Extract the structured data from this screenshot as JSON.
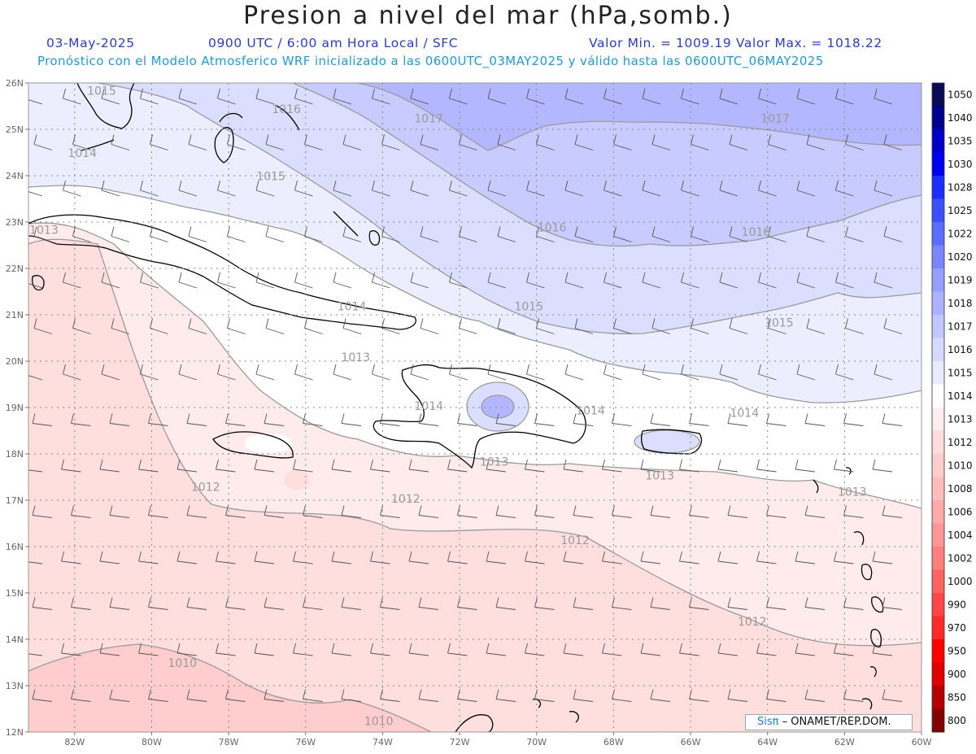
{
  "header": {
    "title": "Presion a nivel del mar (hPa,somb.)",
    "date": "03-May-2025",
    "time": "0900 UTC / 6:00 am Hora Local / SFC",
    "min_max": "Valor Min. = 1009.19  Valor Max. = 1018.22",
    "model_line": "Pronóstico con el Modelo Atmosferico WRF inicializado a las 0600UTC_03MAY2025 y válido hasta las  0600UTC_06MAY2025"
  },
  "credit": {
    "logo": "Sisπ",
    "text": " – ONAMET/REP.DOM."
  },
  "map": {
    "lon_labels": [
      "82W",
      "80W",
      "78W",
      "76W",
      "74W",
      "72W",
      "70W",
      "68W",
      "66W",
      "64W",
      "62W",
      "60W"
    ],
    "lat_labels": [
      "26N",
      "25N",
      "24N",
      "23N",
      "22N",
      "21N",
      "20N",
      "19N",
      "18N",
      "17N",
      "16N",
      "15N",
      "14N",
      "13N",
      "12N"
    ],
    "contour_labels": [
      {
        "text": "1015",
        "lon": -81.3,
        "lat": 25.75
      },
      {
        "text": "1016",
        "lon": -76.5,
        "lat": 25.35
      },
      {
        "text": "1017",
        "lon": -72.8,
        "lat": 25.15
      },
      {
        "text": "1017",
        "lon": -63.8,
        "lat": 25.15
      },
      {
        "text": "1014",
        "lon": -81.8,
        "lat": 24.4
      },
      {
        "text": "1015",
        "lon": -76.9,
        "lat": 23.9
      },
      {
        "text": "1016",
        "lon": -69.6,
        "lat": 22.8
      },
      {
        "text": "1016",
        "lon": -64.3,
        "lat": 22.7
      },
      {
        "text": "1013",
        "lon": -82.8,
        "lat": 22.75
      },
      {
        "text": "1014",
        "lon": -74.8,
        "lat": 21.1
      },
      {
        "text": "1015",
        "lon": -70.2,
        "lat": 21.1
      },
      {
        "text": "1015",
        "lon": -63.7,
        "lat": 20.75
      },
      {
        "text": "1013",
        "lon": -74.7,
        "lat": 20.0
      },
      {
        "text": "1014",
        "lon": -72.8,
        "lat": 18.95
      },
      {
        "text": "1014",
        "lon": -68.6,
        "lat": 18.85
      },
      {
        "text": "1014",
        "lon": -64.6,
        "lat": 18.8
      },
      {
        "text": "1013",
        "lon": -71.1,
        "lat": 17.75
      },
      {
        "text": "1013",
        "lon": -66.8,
        "lat": 17.45
      },
      {
        "text": "1013",
        "lon": -61.8,
        "lat": 17.1
      },
      {
        "text": "1012",
        "lon": -78.6,
        "lat": 17.2
      },
      {
        "text": "1012",
        "lon": -73.4,
        "lat": 16.95
      },
      {
        "text": "1012",
        "lon": -69.0,
        "lat": 16.05
      },
      {
        "text": "1012",
        "lon": -64.4,
        "lat": 14.3
      },
      {
        "text": "1010",
        "lon": -79.2,
        "lat": 13.4
      },
      {
        "text": "1010",
        "lon": -74.1,
        "lat": 12.15
      }
    ],
    "colorbar": [
      "1050",
      "1040",
      "1035",
      "1030",
      "1028",
      "1025",
      "1022",
      "1020",
      "1019",
      "1018",
      "1017",
      "1016",
      "1015",
      "1014",
      "1013",
      "1012",
      "1010",
      "1008",
      "1006",
      "1004",
      "1002",
      "1000",
      "990",
      "970",
      "950",
      "900",
      "850",
      "800"
    ],
    "colorbar_colors": [
      "#0a0a55",
      "#00008c",
      "#0000c8",
      "#0000f0",
      "#1e2dff",
      "#3c50ff",
      "#5a6eff",
      "#7886ff",
      "#969eff",
      "#acb2ff",
      "#c2c6ff",
      "#d6d9ff",
      "#e8eaff",
      "#ffffff",
      "#ffeded",
      "#ffdcdc",
      "#ffcccc",
      "#ffbcbc",
      "#ffaaaa",
      "#ff9696",
      "#ff7e7e",
      "#ff6464",
      "#ff4646",
      "#ff2a2a",
      "#ff0000",
      "#e00000",
      "#b40000",
      "#840000"
    ]
  }
}
